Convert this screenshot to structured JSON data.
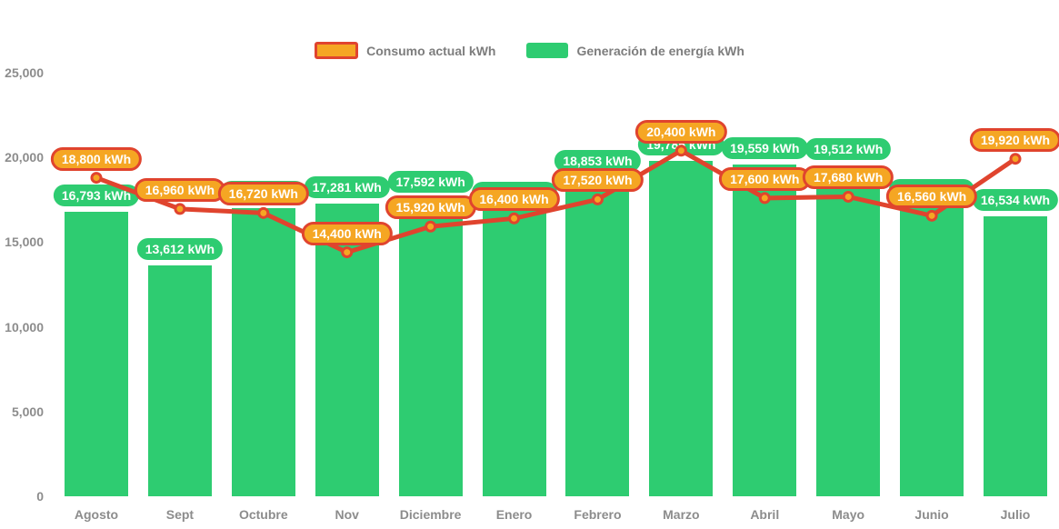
{
  "legend": {
    "consumo_label": "Consumo actual kWh",
    "generacion_label": "Generación de energía kWh"
  },
  "colors": {
    "green": "#2ECC71",
    "amber": "#F5A623",
    "red": "#E0442E",
    "gray": "#7D7D7D"
  },
  "chart_data": {
    "type": "combo",
    "categories": [
      "Agosto",
      "Sept",
      "Octubre",
      "Nov",
      "Diciembre",
      "Enero",
      "Febrero",
      "Marzo",
      "Abril",
      "Mayo",
      "Junio",
      "Julio"
    ],
    "series": [
      {
        "name": "Generación de energía kWh",
        "type": "bar",
        "color": "#2ECC71",
        "values": [
          16793,
          13612,
          17000,
          17281,
          17592,
          16965,
          18853,
          19785,
          19559,
          19512,
          17109,
          16534
        ]
      },
      {
        "name": "Consumo actual kWh",
        "type": "line",
        "color": "#E0442E",
        "marker_color": "#F5A623",
        "values": [
          18800,
          16960,
          16720,
          14400,
          15920,
          16400,
          17520,
          20400,
          17600,
          17680,
          16560,
          19920
        ]
      }
    ],
    "value_suffix": " kWh",
    "data_labels": true,
    "ylim": [
      0,
      25000
    ],
    "y_ticks": [
      0,
      5000,
      10000,
      15000,
      20000,
      25000
    ],
    "grid": false,
    "legend_position": "top",
    "note": "The Generación data label for Octubre is hidden behind the Consumo label in the source image; 17,000 is estimated from the bar height."
  }
}
